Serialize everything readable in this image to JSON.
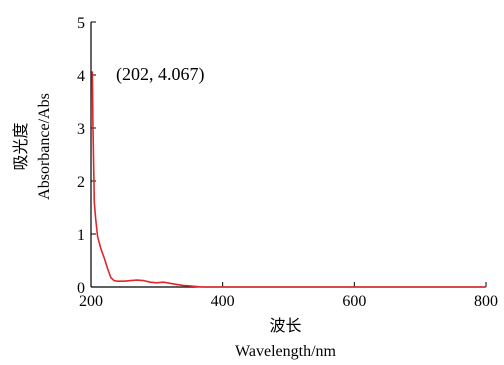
{
  "chart_data": {
    "type": "line",
    "title": "",
    "xlabel": "Wavelength/nm",
    "xlabel_cn": "波长",
    "ylabel": "Absorbance/Abs",
    "ylabel_cn": "吸光度",
    "xlim": [
      200,
      800
    ],
    "ylim": [
      0,
      5
    ],
    "xticks": [
      200,
      400,
      600,
      800
    ],
    "yticks": [
      0,
      1,
      2,
      3,
      4,
      5
    ],
    "grid": false,
    "legend": "none",
    "series": [
      {
        "color": "#e0262b",
        "x": [
          202,
          203,
          205,
          207,
          210,
          215,
          220,
          225,
          230,
          235,
          240,
          250,
          260,
          270,
          280,
          290,
          300,
          310,
          320,
          330,
          340,
          350,
          360,
          370,
          380,
          400,
          500,
          600,
          700,
          800
        ],
        "y": [
          4.067,
          3.0,
          1.6,
          1.3,
          0.95,
          0.72,
          0.55,
          0.35,
          0.18,
          0.12,
          0.11,
          0.11,
          0.12,
          0.13,
          0.12,
          0.09,
          0.08,
          0.09,
          0.07,
          0.05,
          0.03,
          0.02,
          0.01,
          0.0,
          0.0,
          0.0,
          0.0,
          0.0,
          0.0,
          0.0
        ]
      }
    ],
    "annotations": [
      {
        "text": "(202, 4.067)"
      }
    ]
  }
}
